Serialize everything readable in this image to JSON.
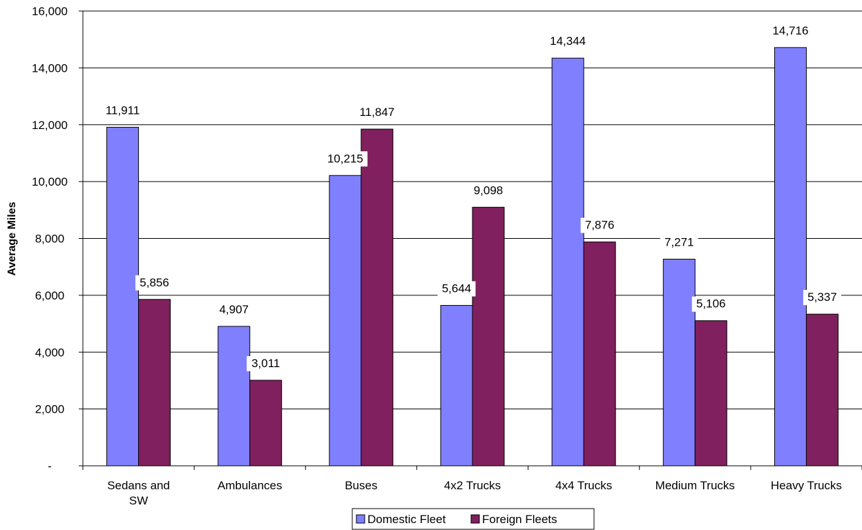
{
  "chart_data": {
    "type": "bar",
    "title": "",
    "xlabel": "",
    "ylabel": "Average Miles",
    "ylim": [
      0,
      16000
    ],
    "y_ticks": [
      0,
      2000,
      4000,
      6000,
      8000,
      10000,
      12000,
      14000,
      16000
    ],
    "y_tick_labels": [
      "-",
      "2,000",
      "4,000",
      "6,000",
      "8,000",
      "10,000",
      "12,000",
      "14,000",
      "16,000"
    ],
    "categories": [
      [
        "Sedans and",
        "SW"
      ],
      [
        "Ambulances"
      ],
      [
        "Buses"
      ],
      [
        "4x2 Trucks"
      ],
      [
        "4x4 Trucks"
      ],
      [
        "Medium Trucks"
      ],
      [
        "Heavy Trucks"
      ]
    ],
    "grid": true,
    "legend_position": "bottom",
    "series": [
      {
        "name": "Domestic Fleet",
        "color": "#8080ff",
        "values": [
          11911,
          4907,
          10215,
          5644,
          14344,
          7271,
          14716
        ],
        "labels": [
          "11,911",
          "4,907",
          "10,215",
          "5,644",
          "14,344",
          "7,271",
          "14,716"
        ]
      },
      {
        "name": "Foreign Fleets",
        "color": "#80205e",
        "values": [
          5856,
          3011,
          11847,
          9098,
          7876,
          5106,
          5337
        ],
        "labels": [
          "5,856",
          "3,011",
          "11,847",
          "9,098",
          "7,876",
          "5,106",
          "5,337"
        ]
      }
    ]
  }
}
